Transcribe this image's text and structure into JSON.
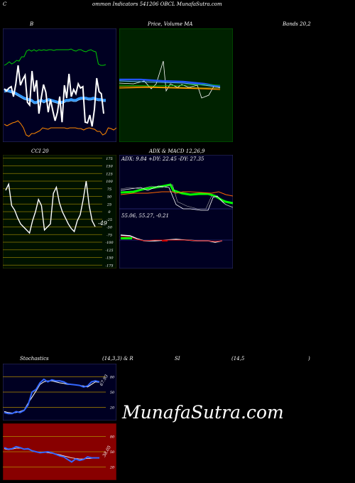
{
  "header": {
    "c": "C",
    "title": "ommon  Indicators 541206  OBCL  MunafaSutra.com"
  },
  "labels": {
    "bb": "B",
    "price_ma": "Price,  Volume  MA",
    "bands": "Bands 20,2",
    "cci": "CCI 20",
    "adx_macd": "ADX  & MACD 12,26,9",
    "adx_values": "ADX: 9.84  +DY: 22.45 -DY: 27.35",
    "macd_values": "55.06,  55.27,  -0.21",
    "cci_last": "-49",
    "stoch": "Stochastics",
    "stoch_params": "(14,3,3) & R",
    "si": "SI",
    "rsi_params": "(14,5",
    "rsi_close": ")",
    "stoch_val": "67.93",
    "rsi_val": "38.05",
    "watermark": "MunafaSutra.com"
  },
  "colors": {
    "bb_bg": "#000022",
    "pv_bg": "#002200",
    "cci_bg": "#001100",
    "adx_bg": "#000022",
    "stoch_bg": "#000022",
    "rsi_bg": "#880000",
    "grid_gold": "#b08a00",
    "cci_grid": "#8a7a00",
    "price": "#ffffff",
    "upper": "#00cc00",
    "lower": "#ff8800",
    "mid": "#3399ff",
    "adx_pos": "#00ff00",
    "adx_neg": "#ff3300",
    "macd_red": "#cc0000"
  },
  "chart_data": [
    {
      "type": "line",
      "name": "bollinger",
      "series": [
        {
          "values": [
            85,
            88,
            84,
            82,
            96,
            78,
            52,
            80,
            72,
            66,
            104,
            108,
            60,
            89,
            73,
            120,
            98,
            79,
            90,
            118,
            100,
            116,
            130,
            118,
            96,
            132,
            80,
            98,
            64,
            96,
            86,
            92,
            78,
            84,
            82,
            132,
            133,
            122,
            138,
            114,
            70,
            89,
            92,
            120
          ]
        },
        {
          "values": [
            52,
            50,
            47,
            50,
            48,
            45,
            46,
            40,
            40,
            32,
            30,
            32,
            30,
            32,
            30,
            31,
            30,
            31,
            30,
            30,
            31,
            30,
            30,
            30,
            30,
            30,
            30,
            29,
            31,
            32,
            30,
            30,
            32,
            33,
            31,
            30,
            32,
            33,
            50,
            52,
            52,
            51
          ]
        },
        {
          "values": [
            88,
            87,
            88,
            89,
            90,
            92,
            94,
            96,
            98,
            99,
            100,
            101,
            104,
            104,
            102,
            101,
            103,
            101,
            100,
            101,
            102,
            103,
            104,
            104,
            103,
            101,
            101,
            100,
            101,
            101,
            99,
            98,
            98,
            98,
            99,
            99,
            98,
            99,
            100,
            100,
            101,
            101
          ]
        },
        {
          "values": [
            135,
            137,
            135,
            133,
            132,
            130,
            134,
            140,
            150,
            152,
            148,
            148,
            146,
            144,
            140,
            141,
            142,
            140,
            140,
            140,
            140,
            140,
            140,
            141,
            140,
            140,
            140,
            141,
            141,
            143,
            141,
            140,
            141,
            142,
            145,
            145,
            150,
            148,
            140,
            141,
            143,
            140
          ]
        }
      ]
    },
    {
      "type": "line",
      "name": "cci",
      "ylim": [
        -175,
        175
      ],
      "ticks": [
        175,
        150,
        125,
        100,
        75,
        50,
        25,
        0,
        -25,
        -50,
        -75,
        -100,
        -125,
        -150,
        -175
      ],
      "series": [
        {
          "values": [
            70,
            90,
            20,
            5,
            -20,
            -40,
            -50,
            -60,
            -70,
            -30,
            0,
            40,
            20,
            -60,
            -50,
            -40,
            60,
            80,
            30,
            0,
            -20,
            -40,
            -55,
            -65,
            -30,
            -10,
            40,
            100,
            20,
            -30,
            -49
          ]
        }
      ]
    },
    {
      "type": "line",
      "name": "stochastics",
      "ylim": [
        0,
        100
      ],
      "ticks": [
        80,
        50,
        20
      ],
      "series": [
        {
          "values": [
            10,
            8,
            8,
            12,
            10,
            14,
            25,
            50,
            55,
            68,
            75,
            70,
            74,
            72,
            72,
            70,
            66,
            65,
            64,
            63,
            60,
            62,
            70,
            72,
            70
          ]
        },
        {
          "values": [
            12,
            10,
            9,
            10,
            12,
            15,
            28,
            40,
            52,
            65,
            70,
            72,
            72,
            70,
            68,
            67,
            65,
            65,
            64,
            63,
            62,
            60,
            65,
            70,
            69
          ]
        }
      ]
    },
    {
      "type": "line",
      "name": "rsi",
      "ylim": [
        0,
        100
      ],
      "ticks": [
        80,
        50,
        20
      ],
      "series": [
        {
          "values": [
            58,
            55,
            56,
            60,
            58,
            55,
            56,
            52,
            50,
            48,
            49,
            50,
            48,
            45,
            42,
            40,
            35,
            30,
            36,
            33,
            35,
            40,
            38,
            38,
            38
          ]
        },
        {
          "values": [
            56,
            54,
            55,
            57,
            57,
            55,
            55,
            52,
            50,
            49,
            49,
            48,
            47,
            46,
            44,
            42,
            40,
            38,
            37,
            36,
            36,
            37,
            37,
            38,
            38
          ]
        }
      ]
    }
  ]
}
